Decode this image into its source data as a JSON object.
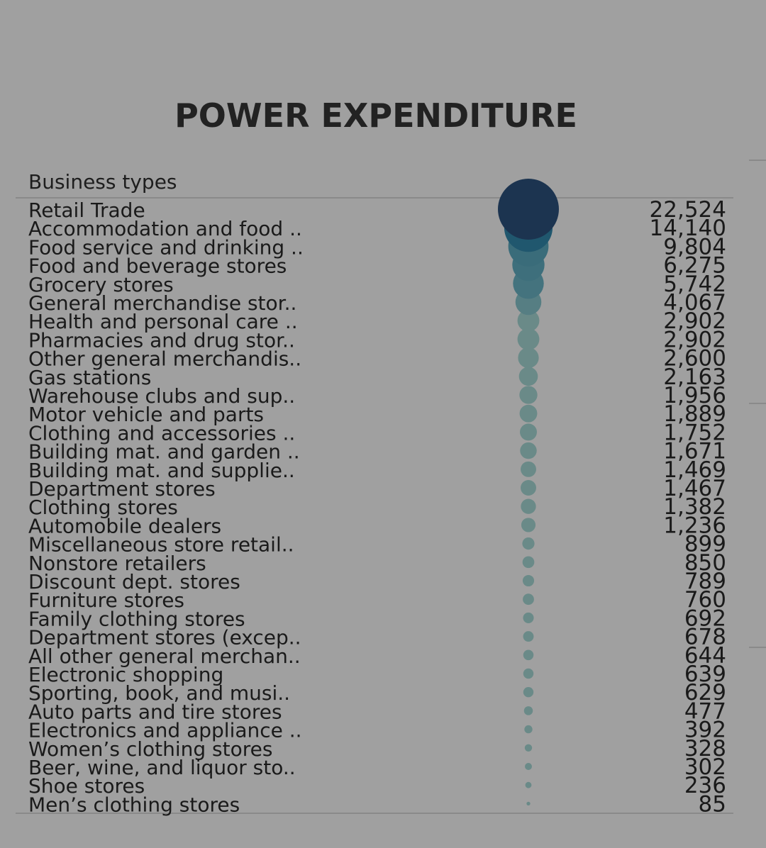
{
  "chart_data": {
    "type": "scatter",
    "title": "POWER EXPENDITURE",
    "column_header": "Business types",
    "colors": {
      "background": "#a0a0a0",
      "largest": "#1c3450",
      "second": "#20576e",
      "mid": "#3e6f7c",
      "small": "#6a8a88",
      "text": "#1a1a1a"
    },
    "categories": [
      "Retail Trade",
      "Accommodation and food ..",
      "Food service and drinking ..",
      "Food and beverage stores",
      "Grocery stores",
      "General merchandise stor..",
      "Health and personal care ..",
      "Pharmacies and drug stor..",
      "Other general merchandis..",
      "Gas stations",
      "Warehouse clubs and sup..",
      "Motor vehicle and parts",
      "Clothing and accessories ..",
      "Building mat. and garden ..",
      "Building mat. and supplie..",
      "Department stores",
      "Clothing stores",
      "Automobile dealers",
      "Miscellaneous store retail..",
      "Nonstore retailers",
      "Discount dept. stores",
      "Furniture stores",
      "Family clothing stores",
      "Department stores (excep..",
      "All other general merchan..",
      "Electronic shopping",
      "Sporting, book, and  musi..",
      "Auto parts and tire stores",
      "Electronics and appliance ..",
      "Women’s clothing stores",
      "Beer, wine, and liquor sto..",
      "Shoe stores",
      "Men’s clothing stores"
    ],
    "values": [
      22524,
      14140,
      9804,
      6275,
      5742,
      4067,
      2902,
      2902,
      2600,
      2163,
      1956,
      1889,
      1752,
      1671,
      1469,
      1467,
      1382,
      1236,
      899,
      850,
      789,
      760,
      692,
      678,
      644,
      639,
      629,
      477,
      392,
      328,
      302,
      236,
      85
    ],
    "value_labels": [
      "22,524",
      "14,140",
      "9,804",
      "6,275",
      "5,742",
      "4,067",
      "2,902",
      "2,902",
      "2,600",
      "2,163",
      "1,956",
      "1,889",
      "1,752",
      "1,671",
      "1,469",
      "1,467",
      "1,382",
      "1,236",
      "899",
      "850",
      "789",
      "760",
      "692",
      "678",
      "644",
      "639",
      "629",
      "477",
      "392",
      "328",
      "302",
      "236",
      "85"
    ]
  }
}
